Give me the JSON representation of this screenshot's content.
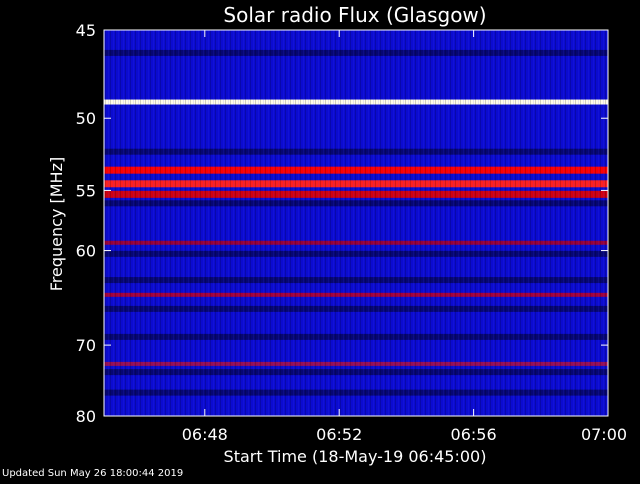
{
  "chart_data": {
    "type": "heatmap",
    "title": "Solar radio Flux (Glasgow)",
    "xlabel": "Start Time (18-May-19 06:45:00)",
    "ylabel": "Frequency [MHz]",
    "x_ticks": [
      "06:48",
      "06:52",
      "06:56",
      "07:00"
    ],
    "x_tick_minutes": [
      48,
      52,
      56,
      60
    ],
    "x_range_minutes": [
      45,
      60
    ],
    "y_ticks": [
      "45",
      "50",
      "55",
      "60",
      "70",
      "80"
    ],
    "y_tick_values": [
      45,
      50,
      55,
      60,
      70,
      80
    ],
    "ylim": [
      45,
      80
    ],
    "y_scale": "reciprocal",
    "grid": false,
    "colors": {
      "background": "#0000ff",
      "weak": "#000000",
      "medium": "#0b0bd0",
      "strong": "#ff0000",
      "saturated": "#ffffff"
    },
    "intense_bands": [
      {
        "freq_mhz": 49.0,
        "color": "#fffbe6",
        "level": "saturated"
      },
      {
        "freq_mhz": 53.5,
        "color": "#ff0000",
        "level": "strong"
      },
      {
        "freq_mhz": 54.5,
        "color": "#ff2020",
        "level": "strong"
      },
      {
        "freq_mhz": 55.3,
        "color": "#d00010",
        "level": "strong"
      },
      {
        "freq_mhz": 59.3,
        "color": "#b00020",
        "level": "medium"
      },
      {
        "freq_mhz": 64.3,
        "color": "#c00020",
        "level": "medium"
      },
      {
        "freq_mhz": 72.4,
        "color": "#b01040",
        "level": "medium"
      }
    ],
    "dark_bands": [
      {
        "freq_mhz": 46.2
      },
      {
        "freq_mhz": 52.2
      },
      {
        "freq_mhz": 56.0
      },
      {
        "freq_mhz": 60.3
      },
      {
        "freq_mhz": 62.8
      },
      {
        "freq_mhz": 65.8
      },
      {
        "freq_mhz": 69.0
      },
      {
        "freq_mhz": 73.5
      },
      {
        "freq_mhz": 76.4
      }
    ]
  },
  "footer": {
    "text": "Updated Sun May 26 18:00:44 2019"
  }
}
